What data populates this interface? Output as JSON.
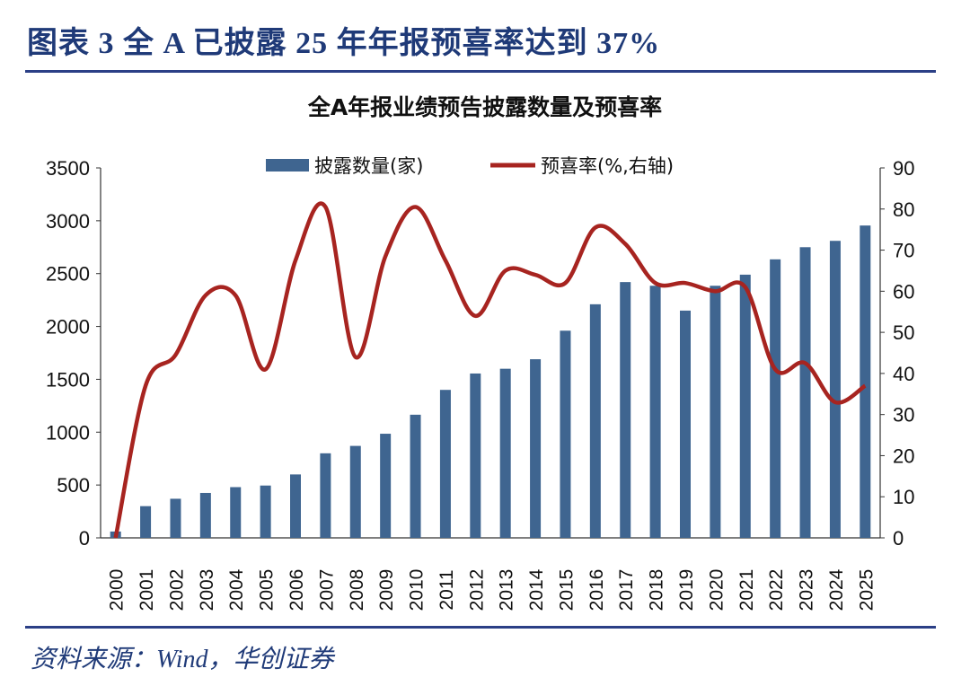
{
  "figure_title": "图表 3   全 A 已披露 25 年年报预喜率达到 37%",
  "source": "资料来源：Wind，华创证券",
  "colors": {
    "bar": "#3f6590",
    "line": "#a72420",
    "title": "#1f3a78"
  },
  "chart_data": {
    "type": "bar+line",
    "title": "全A年报业绩预告披露数量及预喜率",
    "categories": [
      "2000",
      "2001",
      "2002",
      "2003",
      "2004",
      "2005",
      "2006",
      "2007",
      "2008",
      "2009",
      "2010",
      "2011",
      "2012",
      "2013",
      "2014",
      "2015",
      "2016",
      "2017",
      "2018",
      "2019",
      "2020",
      "2021",
      "2022",
      "2023",
      "2024",
      "2025"
    ],
    "series": [
      {
        "name": "披露数量(家)",
        "type": "bar",
        "axis": "left",
        "values": [
          60,
          300,
          370,
          425,
          480,
          495,
          600,
          800,
          870,
          985,
          1165,
          1400,
          1555,
          1600,
          1690,
          1960,
          2210,
          2420,
          2385,
          2150,
          2385,
          2490,
          2635,
          2750,
          2810,
          2955
        ]
      },
      {
        "name": "预喜率(%,右轴)",
        "type": "line",
        "axis": "right",
        "values": [
          0,
          37,
          44.5,
          59,
          59,
          41,
          67.5,
          80.5,
          44,
          68.5,
          80.5,
          67.5,
          54,
          65,
          64,
          62,
          75.5,
          71.5,
          62,
          62,
          60,
          61,
          41,
          42.5,
          33,
          37
        ]
      }
    ],
    "yleft": {
      "lim": [
        0,
        3500
      ],
      "ticks": [
        "0",
        "500",
        "1000",
        "1500",
        "2000",
        "2500",
        "3000",
        "3500"
      ]
    },
    "yright": {
      "lim": [
        0,
        90
      ],
      "ticks": [
        "0",
        "10",
        "20",
        "30",
        "40",
        "50",
        "60",
        "70",
        "80",
        "90"
      ]
    },
    "legend": "top-center",
    "grid": false
  }
}
